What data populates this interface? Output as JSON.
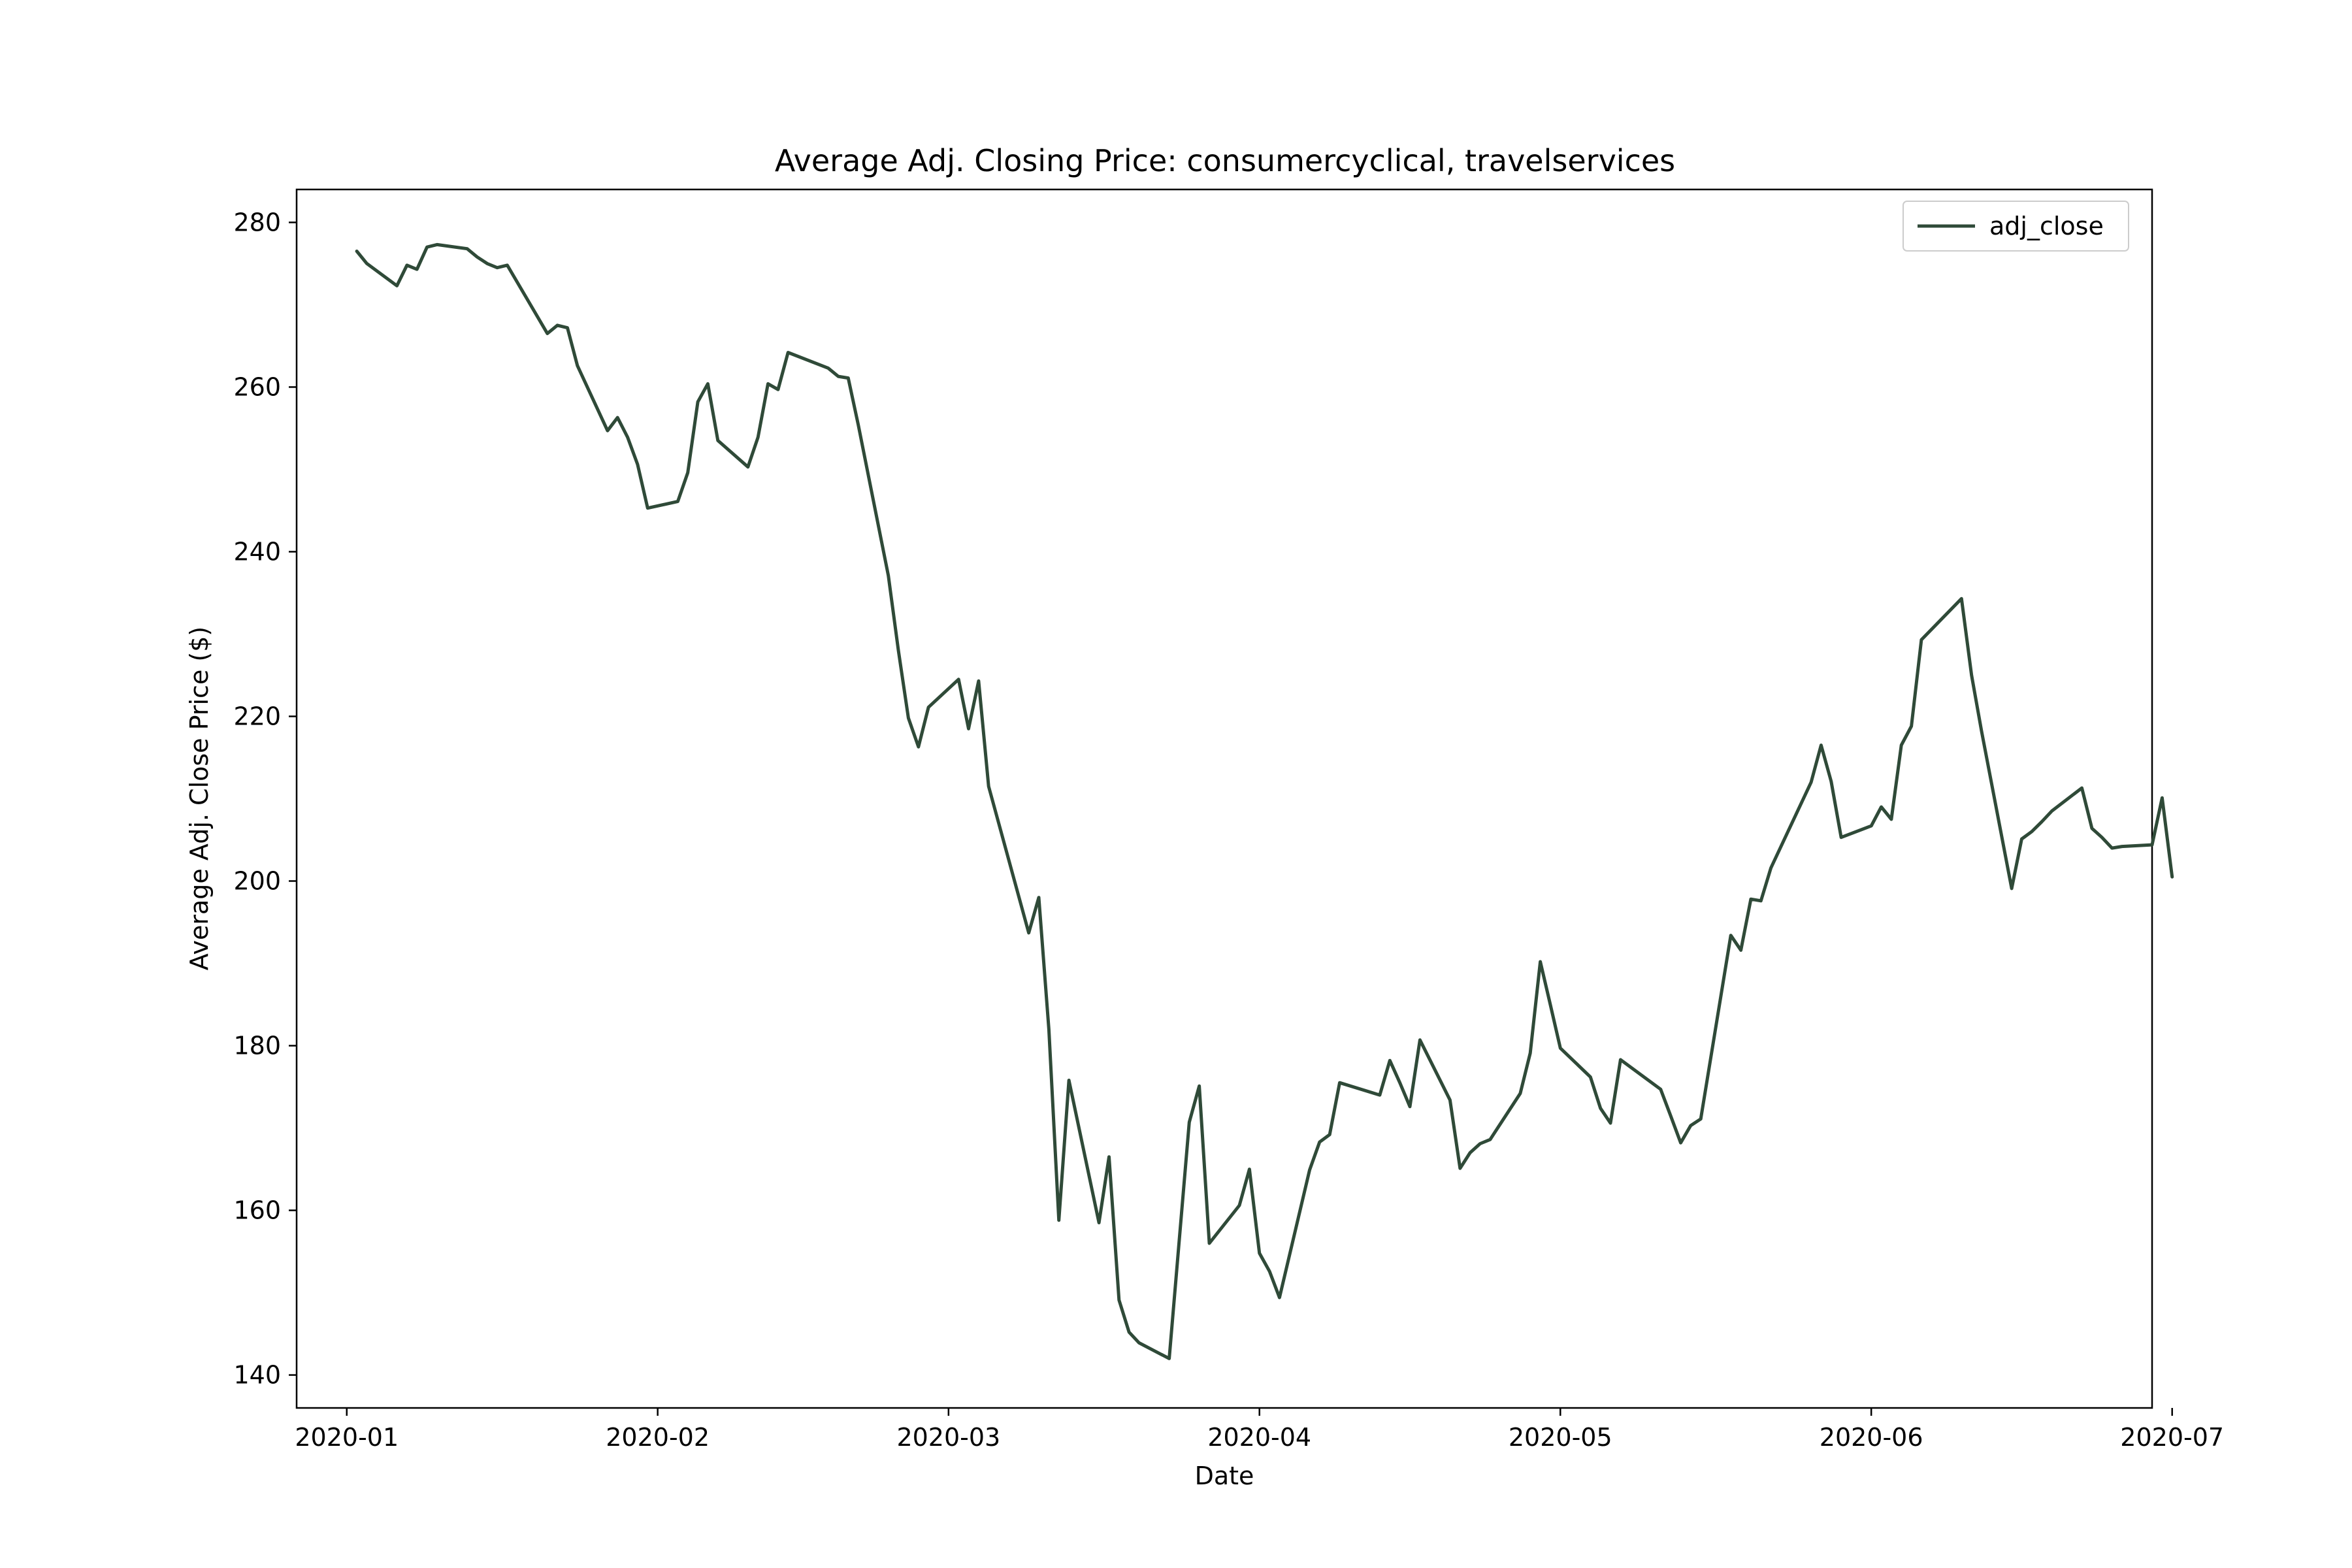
{
  "chart_data": {
    "type": "line",
    "title": "Average Adj. Closing Price: consumercyclical, travelservices",
    "xlabel": "Date",
    "ylabel": "Average Adj. Close Price ($)",
    "ylim": [
      136,
      284
    ],
    "xlim": [
      "2019-12-27",
      "2020-06-29"
    ],
    "x_ticks": [
      "2020-01-01",
      "2020-02-01",
      "2020-03-01",
      "2020-04-01",
      "2020-05-01",
      "2020-06-01",
      "2020-07-01"
    ],
    "x_tick_labels": [
      "2020-01",
      "2020-02",
      "2020-03",
      "2020-04",
      "2020-05",
      "2020-06",
      "2020-07"
    ],
    "y_ticks": [
      140,
      160,
      180,
      200,
      220,
      240,
      260,
      280
    ],
    "y_tick_labels": [
      "140",
      "160",
      "180",
      "200",
      "220",
      "240",
      "260",
      "280"
    ],
    "grid": false,
    "legend_position": "top-right",
    "line_color": "#2f4a38",
    "series": [
      {
        "name": "adj_close",
        "points": [
          [
            "2020-01-02",
            276.5
          ],
          [
            "2020-01-03",
            275.0
          ],
          [
            "2020-01-06",
            272.3
          ],
          [
            "2020-01-07",
            274.8
          ],
          [
            "2020-01-08",
            274.3
          ],
          [
            "2020-01-09",
            277.0
          ],
          [
            "2020-01-10",
            277.3
          ],
          [
            "2020-01-13",
            276.8
          ],
          [
            "2020-01-14",
            275.8
          ],
          [
            "2020-01-15",
            275.0
          ],
          [
            "2020-01-16",
            274.5
          ],
          [
            "2020-01-17",
            274.8
          ],
          [
            "2020-01-21",
            266.5
          ],
          [
            "2020-01-22",
            267.5
          ],
          [
            "2020-01-23",
            267.2
          ],
          [
            "2020-01-24",
            262.6
          ],
          [
            "2020-01-27",
            254.7
          ],
          [
            "2020-01-28",
            256.3
          ],
          [
            "2020-01-29",
            253.9
          ],
          [
            "2020-01-30",
            250.6
          ],
          [
            "2020-01-31",
            245.3
          ],
          [
            "2020-02-03",
            246.1
          ],
          [
            "2020-02-04",
            249.6
          ],
          [
            "2020-02-05",
            258.2
          ],
          [
            "2020-02-06",
            260.4
          ],
          [
            "2020-02-07",
            253.5
          ],
          [
            "2020-02-10",
            250.3
          ],
          [
            "2020-02-11",
            253.9
          ],
          [
            "2020-02-12",
            260.4
          ],
          [
            "2020-02-13",
            259.7
          ],
          [
            "2020-02-14",
            264.2
          ],
          [
            "2020-02-18",
            262.3
          ],
          [
            "2020-02-19",
            261.3
          ],
          [
            "2020-02-20",
            261.1
          ],
          [
            "2020-02-21",
            255.4
          ],
          [
            "2020-02-24",
            237.1
          ],
          [
            "2020-02-25",
            228.0
          ],
          [
            "2020-02-26",
            219.8
          ],
          [
            "2020-02-27",
            216.3
          ],
          [
            "2020-02-28",
            221.1
          ],
          [
            "2020-03-02",
            224.5
          ],
          [
            "2020-03-03",
            218.5
          ],
          [
            "2020-03-04",
            224.3
          ],
          [
            "2020-03-05",
            211.5
          ],
          [
            "2020-03-09",
            193.7
          ],
          [
            "2020-03-10",
            198.0
          ],
          [
            "2020-03-11",
            182.0
          ],
          [
            "2020-03-12",
            158.8
          ],
          [
            "2020-03-13",
            175.8
          ],
          [
            "2020-03-16",
            158.5
          ],
          [
            "2020-03-17",
            166.5
          ],
          [
            "2020-03-18",
            149.1
          ],
          [
            "2020-03-19",
            145.2
          ],
          [
            "2020-03-20",
            143.9
          ],
          [
            "2020-03-23",
            142.0
          ],
          [
            "2020-03-25",
            170.7
          ],
          [
            "2020-03-26",
            175.1
          ],
          [
            "2020-03-27",
            156.0
          ],
          [
            "2020-03-30",
            160.6
          ],
          [
            "2020-03-31",
            165.0
          ],
          [
            "2020-04-01",
            154.8
          ],
          [
            "2020-04-02",
            152.6
          ],
          [
            "2020-04-03",
            149.4
          ],
          [
            "2020-04-06",
            164.9
          ],
          [
            "2020-04-07",
            168.3
          ],
          [
            "2020-04-08",
            169.2
          ],
          [
            "2020-04-09",
            175.5
          ],
          [
            "2020-04-13",
            174.0
          ],
          [
            "2020-04-14",
            178.2
          ],
          [
            "2020-04-15",
            175.5
          ],
          [
            "2020-04-16",
            172.6
          ],
          [
            "2020-04-17",
            180.7
          ],
          [
            "2020-04-20",
            173.4
          ],
          [
            "2020-04-21",
            165.1
          ],
          [
            "2020-04-22",
            167.0
          ],
          [
            "2020-04-23",
            168.1
          ],
          [
            "2020-04-24",
            168.6
          ],
          [
            "2020-04-27",
            174.2
          ],
          [
            "2020-04-28",
            179.1
          ],
          [
            "2020-04-29",
            190.2
          ],
          [
            "2020-04-30",
            185.0
          ],
          [
            "2020-05-01",
            179.7
          ],
          [
            "2020-05-04",
            176.2
          ],
          [
            "2020-05-05",
            172.4
          ],
          [
            "2020-05-06",
            170.6
          ],
          [
            "2020-05-07",
            178.3
          ],
          [
            "2020-05-11",
            174.7
          ],
          [
            "2020-05-12",
            171.5
          ],
          [
            "2020-05-13",
            168.2
          ],
          [
            "2020-05-14",
            170.3
          ],
          [
            "2020-05-15",
            171.1
          ],
          [
            "2020-05-18",
            193.4
          ],
          [
            "2020-05-19",
            191.6
          ],
          [
            "2020-05-20",
            197.8
          ],
          [
            "2020-05-21",
            197.6
          ],
          [
            "2020-05-22",
            201.6
          ],
          [
            "2020-05-26",
            212.0
          ],
          [
            "2020-05-27",
            216.5
          ],
          [
            "2020-05-28",
            212.1
          ],
          [
            "2020-05-29",
            205.3
          ],
          [
            "2020-06-01",
            206.7
          ],
          [
            "2020-06-02",
            209.0
          ],
          [
            "2020-06-03",
            207.5
          ],
          [
            "2020-06-04",
            216.5
          ],
          [
            "2020-06-05",
            218.8
          ],
          [
            "2020-06-06",
            229.3
          ],
          [
            "2020-06-10",
            234.3
          ],
          [
            "2020-06-11",
            225.0
          ],
          [
            "2020-06-12",
            218.2
          ],
          [
            "2020-06-15",
            199.1
          ],
          [
            "2020-06-16",
            205.1
          ],
          [
            "2020-06-17",
            206.0
          ],
          [
            "2020-06-18",
            207.2
          ],
          [
            "2020-06-19",
            208.5
          ],
          [
            "2020-06-22",
            211.3
          ],
          [
            "2020-06-23",
            206.4
          ],
          [
            "2020-06-24",
            205.3
          ],
          [
            "2020-06-25",
            204.0
          ],
          [
            "2020-06-26",
            204.2
          ],
          [
            "2020-06-29",
            204.4
          ],
          [
            "2020-06-30",
            210.1
          ],
          [
            "2020-07-01",
            200.5
          ]
        ]
      }
    ]
  }
}
